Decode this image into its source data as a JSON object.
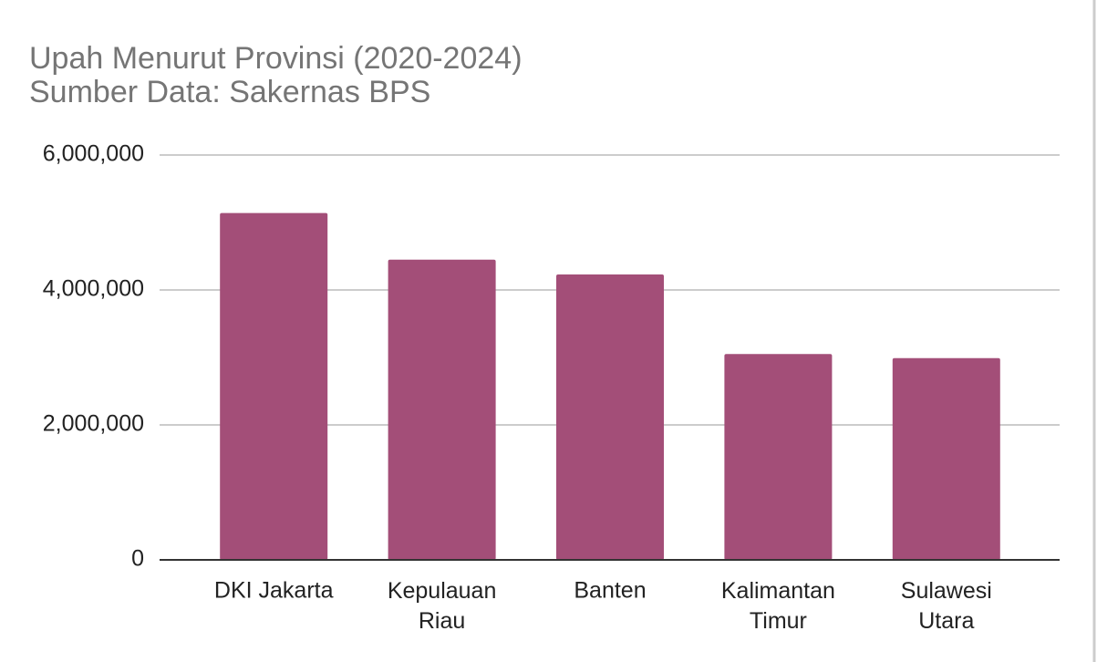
{
  "chart_data": {
    "type": "bar",
    "title": "Upah Menurut Provinsi (2020-2024)",
    "subtitle": "Sumber Data: Sakernas BPS",
    "categories": [
      "DKI Jakarta",
      "Kepulauan Riau",
      "Banten",
      "Kalimantan Timur",
      "Sulawesi Utara"
    ],
    "values": [
      5140000,
      4450000,
      4230000,
      3050000,
      2990000
    ],
    "color": "#a34e78",
    "ylim": [
      0,
      6000000
    ],
    "yticks": [
      0,
      {
        "value": 2000000,
        "label": "2,000,000"
      },
      {
        "value": 4000000,
        "label": "4,000,000"
      },
      {
        "value": 6000000,
        "label": "6,000,000"
      }
    ],
    "grid": true
  }
}
